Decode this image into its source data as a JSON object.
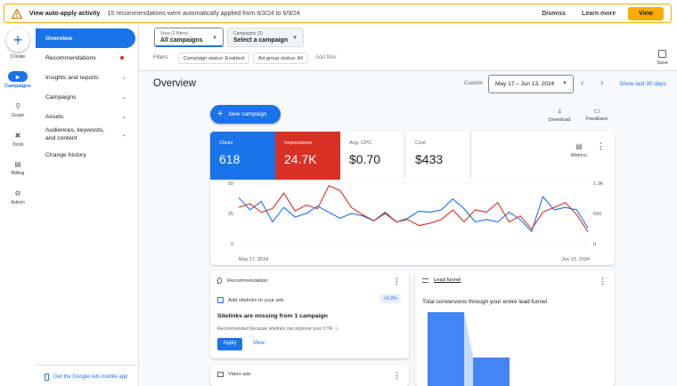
{
  "banner": {
    "title": "View auto-apply activity",
    "message": "· 15 recommendations were automatically applied from 6/3/24 to 6/9/24",
    "dismiss": "Dismiss",
    "learn_more": "Learn more",
    "view": "View",
    "accent_color": "#f9ab00"
  },
  "rail": {
    "items": [
      {
        "label": "Create",
        "icon": "plus-icon"
      },
      {
        "label": "Campaigns",
        "icon": "megaphone-icon"
      },
      {
        "label": "Goals",
        "icon": "trophy-icon"
      },
      {
        "label": "Tools",
        "icon": "tools-icon"
      },
      {
        "label": "Billing",
        "icon": "card-icon"
      },
      {
        "label": "Admin",
        "icon": "gear-icon"
      }
    ]
  },
  "nav": {
    "items": [
      {
        "label": "Overview"
      },
      {
        "label": "Recommendations"
      },
      {
        "label": "Insights and reports"
      },
      {
        "label": "Campaigns"
      },
      {
        "label": "Assets"
      },
      {
        "label": "Audiences, keywords, and content"
      },
      {
        "label": "Change history"
      }
    ],
    "footer": "Get the Google Ads mobile app"
  },
  "filterbar": {
    "view_label": "View (2 filters)",
    "view_value": "All campaigns",
    "campaigns_label": "Campaigns (2)",
    "campaigns_value": "Select a campaign",
    "filters_label": "Filters",
    "chip1": "Campaign status: Enabled",
    "chip2": "Ad group status: All",
    "add_filter": "Add filter",
    "save": "Save"
  },
  "main": {
    "title": "Overview",
    "custom": "Custom",
    "date_range": "May 17 – Jun 13, 2024",
    "last_30": "Show last 30 days",
    "new_campaign": "New campaign",
    "download": "Download",
    "feedback": "Feedback"
  },
  "metrics": {
    "clicks_label": "Clicks",
    "clicks_value": "618",
    "impr_label": "Impressions",
    "impr_value": "24.7K",
    "cpc_label": "Avg. CPC",
    "cpc_value": "$0.70",
    "cost_label": "Cost",
    "cost_value": "$433",
    "metrics_btn": "Metrics"
  },
  "chart_data": {
    "type": "line",
    "x_start": "May 17, 2024",
    "x_end": "Jun 13, 2024",
    "y_left_ticks": [
      "50",
      "25",
      "0"
    ],
    "y_right_ticks": [
      "1.3K",
      "500",
      "0"
    ],
    "y_left_range": [
      0,
      50
    ],
    "y_right_range": [
      0,
      1300
    ],
    "series": [
      {
        "color": "#1a73e8",
        "values": [
          38,
          28,
          35,
          18,
          30,
          22,
          25,
          31,
          26,
          21,
          25,
          23,
          19,
          26,
          18,
          21,
          27,
          26,
          28,
          37,
          29,
          18,
          20,
          18,
          26,
          20,
          10,
          39,
          28,
          30,
          28,
          13
        ]
      },
      {
        "color": "#d93025",
        "values": [
          30,
          33,
          26,
          29,
          42,
          27,
          32,
          29,
          48,
          44,
          30,
          24,
          19,
          25,
          18,
          20,
          15,
          17,
          20,
          28,
          18,
          28,
          26,
          34,
          18,
          23,
          12,
          26,
          30,
          34,
          24,
          10
        ]
      }
    ]
  },
  "recommendation": {
    "header": "Recommendation",
    "line": "Add sitelinks to your ads",
    "uplift": "+5.9%",
    "title": "Sitelinks are missing from 1 campaign",
    "reason": "Recommended because sitelinks can improve your CTR ⓘ",
    "apply": "Apply",
    "view": "View"
  },
  "video": {
    "header": "Video ads"
  },
  "funnel": {
    "header": "Lead funnel",
    "title": "Total conversions through your entire lead funnel"
  }
}
